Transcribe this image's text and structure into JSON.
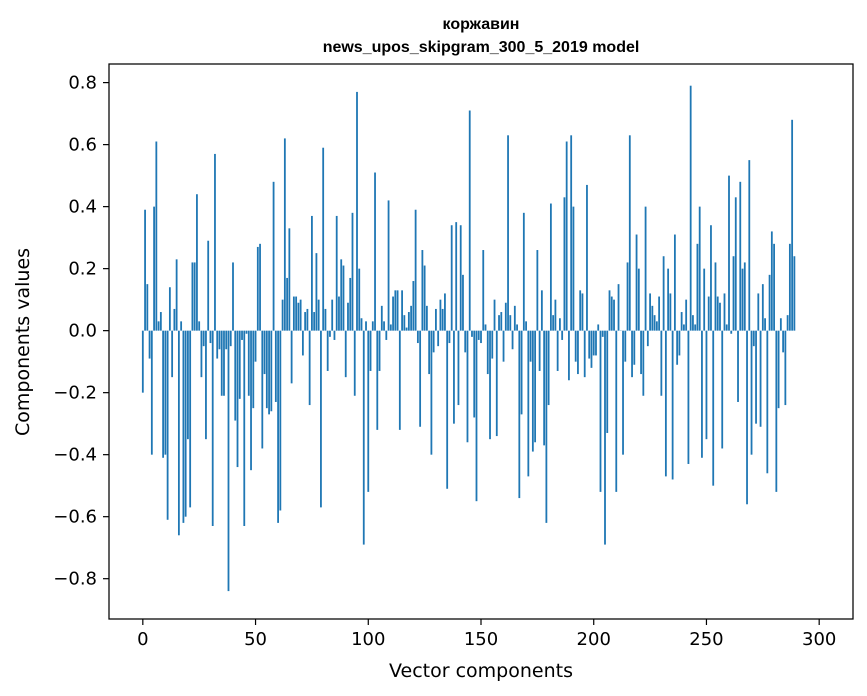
{
  "chart_data": {
    "type": "bar",
    "title": "коржавин",
    "subtitle": "news_upos_skipgram_300_5_2019 model",
    "xlabel": "Vector components",
    "ylabel": "Components values",
    "xlim": [
      -15,
      315
    ],
    "ylim": [
      -0.93,
      0.86
    ],
    "grid": false,
    "bar_color": "#1f77b4",
    "x_ticks": [
      0,
      50,
      100,
      150,
      200,
      250,
      300
    ],
    "x_tick_labels": [
      "0",
      "50",
      "100",
      "150",
      "200",
      "250",
      "300"
    ],
    "y_ticks": [
      -0.8,
      -0.6,
      -0.4,
      -0.2,
      0.0,
      0.2,
      0.4,
      0.6,
      0.8
    ],
    "y_tick_labels": [
      "−0.8",
      "−0.6",
      "−0.4",
      "−0.2",
      "0.0",
      "0.2",
      "0.4",
      "0.6",
      "0.8"
    ],
    "values": [
      -0.2,
      0.39,
      0.15,
      -0.09,
      -0.4,
      0.4,
      0.61,
      0.03,
      0.06,
      -0.41,
      -0.4,
      -0.61,
      0.14,
      -0.15,
      0.07,
      0.23,
      -0.66,
      0.03,
      -0.62,
      -0.6,
      -0.35,
      -0.57,
      0.22,
      0.22,
      0.44,
      0.03,
      -0.15,
      -0.05,
      -0.35,
      0.29,
      -0.04,
      -0.63,
      0.57,
      -0.09,
      -0.06,
      -0.21,
      -0.21,
      -0.06,
      -0.84,
      -0.05,
      0.22,
      -0.29,
      -0.44,
      -0.22,
      -0.03,
      -0.63,
      -0.01,
      -0.21,
      -0.45,
      -0.25,
      -0.1,
      0.27,
      0.28,
      -0.38,
      -0.14,
      -0.25,
      -0.27,
      -0.26,
      0.48,
      -0.23,
      -0.62,
      -0.58,
      0.1,
      0.62,
      0.17,
      0.33,
      -0.17,
      0.11,
      0.11,
      0.09,
      0.1,
      -0.08,
      0.06,
      0.07,
      -0.24,
      0.37,
      0.06,
      0.25,
      0.1,
      -0.57,
      0.59,
      0.07,
      -0.13,
      -0.02,
      0.1,
      -0.03,
      0.37,
      0.11,
      0.23,
      0.21,
      -0.15,
      0.09,
      0.17,
      0.38,
      -0.21,
      0.77,
      0.2,
      0.04,
      -0.69,
      0.03,
      -0.52,
      -0.13,
      0.03,
      0.51,
      -0.32,
      -0.13,
      0.08,
      0.03,
      -0.03,
      0.42,
      0.02,
      0.11,
      0.13,
      0.13,
      -0.32,
      0.13,
      0.05,
      0.01,
      0.06,
      0.08,
      0.16,
      0.39,
      -0.04,
      -0.31,
      0.26,
      0.21,
      0.08,
      -0.14,
      -0.4,
      -0.07,
      0.07,
      -0.05,
      0.1,
      0.07,
      0.12,
      -0.51,
      -0.04,
      0.34,
      -0.3,
      0.35,
      -0.24,
      0.34,
      0.18,
      -0.07,
      -0.36,
      0.71,
      -0.02,
      -0.28,
      -0.55,
      -0.03,
      -0.04,
      0.26,
      0.02,
      -0.14,
      -0.35,
      -0.09,
      0.1,
      -0.34,
      0.05,
      0.06,
      -0.1,
      0.09,
      0.63,
      0.05,
      -0.06,
      0.08,
      0.02,
      -0.54,
      -0.27,
      0.38,
      0.03,
      -0.47,
      -0.1,
      -0.39,
      -0.36,
      0.26,
      -0.13,
      0.13,
      -0.37,
      -0.62,
      -0.24,
      0.41,
      0.05,
      0.1,
      -0.13,
      0.04,
      -0.03,
      0.43,
      0.61,
      -0.16,
      0.63,
      0.4,
      -0.1,
      -0.14,
      0.13,
      0.12,
      -0.15,
      0.47,
      -0.09,
      -0.12,
      -0.08,
      -0.08,
      0.02,
      -0.52,
      -0.02,
      -0.69,
      -0.33,
      0.13,
      0.11,
      0.1,
      -0.52,
      0.15,
      0.0,
      -0.4,
      -0.1,
      0.22,
      0.63,
      -0.15,
      -0.11,
      0.31,
      0.2,
      -0.14,
      -0.21,
      0.4,
      -0.05,
      0.12,
      0.08,
      0.05,
      0.03,
      0.11,
      -0.21,
      0.24,
      -0.47,
      0.2,
      0.12,
      -0.48,
      0.31,
      -0.11,
      -0.08,
      0.06,
      0.02,
      0.1,
      -0.43,
      0.79,
      0.05,
      0.02,
      0.28,
      0.4,
      -0.41,
      0.2,
      -0.35,
      0.11,
      0.34,
      -0.5,
      0.22,
      0.11,
      0.09,
      -0.38,
      0.12,
      0.02,
      0.5,
      -0.01,
      0.24,
      0.43,
      -0.23,
      0.48,
      0.2,
      0.22,
      -0.56,
      0.55,
      -0.4,
      -0.05,
      -0.3,
      0.12,
      -0.31,
      0.15,
      0.04,
      -0.46,
      0.18,
      0.32,
      0.28,
      -0.52,
      -0.25,
      0.04,
      -0.07,
      -0.24,
      0.05,
      0.28,
      0.68,
      0.24
    ]
  }
}
